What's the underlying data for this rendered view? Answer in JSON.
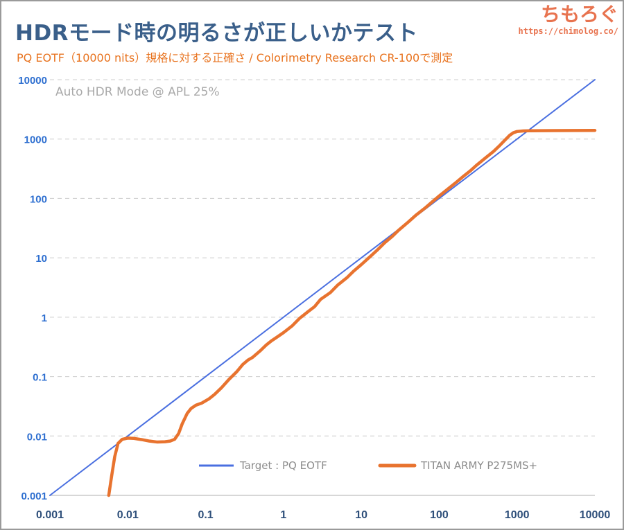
{
  "header": {
    "title": "HDRモード時の明るさが正しいかテスト",
    "subtitle": "PQ EOTF（10000 nits）規格に対する正確さ / Colorimetry Research CR-100で測定"
  },
  "logo": {
    "name": "ちもろぐ",
    "url": "https://chimolog.co/"
  },
  "colors": {
    "target": "#4a6fe0",
    "measured": "#e8732f",
    "title": "#3a5f8a",
    "subtitle": "#e8731f",
    "y_tick": "#2e6fd0",
    "x_tick": "#2e4f7a",
    "grid": "#cccccc"
  },
  "chart_data": {
    "type": "line",
    "xscale": "log",
    "yscale": "log",
    "xlim": [
      0.001,
      10000
    ],
    "ylim": [
      0.001,
      10000
    ],
    "x_ticks": [
      "0.001",
      "0.01",
      "0.1",
      "1",
      "10",
      "100",
      "1000",
      "10000"
    ],
    "y_ticks": [
      "0.001",
      "0.01",
      "0.1",
      "1",
      "10",
      "100",
      "1000",
      "10000"
    ],
    "grid": "horizontal dashed",
    "annotation": "Auto HDR Mode @ APL 25%",
    "legend_position": "bottom-right",
    "series": [
      {
        "name": "Target : PQ EOTF",
        "x": [
          0.001,
          10000
        ],
        "y": [
          0.001,
          10000
        ]
      },
      {
        "name": "TITAN ARMY P275MS+",
        "x": [
          0.0057,
          0.0062,
          0.0068,
          0.0075,
          0.0085,
          0.01,
          0.012,
          0.015,
          0.019,
          0.024,
          0.03,
          0.035,
          0.04,
          0.045,
          0.05,
          0.058,
          0.065,
          0.075,
          0.09,
          0.11,
          0.13,
          0.16,
          0.2,
          0.25,
          0.3,
          0.35,
          0.4,
          0.5,
          0.6,
          0.7,
          0.8,
          1.0,
          1.3,
          1.6,
          2,
          2.5,
          3,
          4,
          5,
          6.5,
          8,
          10,
          13,
          16,
          20,
          25,
          30,
          40,
          50,
          65,
          80,
          100,
          130,
          160,
          200,
          250,
          300,
          400,
          500,
          600,
          700,
          800,
          900,
          1000,
          1200,
          1500,
          2000,
          3000,
          5000,
          10000
        ],
        "y": [
          0.001,
          0.0021,
          0.0045,
          0.0075,
          0.0088,
          0.0092,
          0.0091,
          0.0087,
          0.0082,
          0.0079,
          0.008,
          0.0082,
          0.0088,
          0.011,
          0.016,
          0.024,
          0.029,
          0.033,
          0.036,
          0.042,
          0.05,
          0.065,
          0.09,
          0.12,
          0.16,
          0.19,
          0.21,
          0.27,
          0.34,
          0.4,
          0.45,
          0.55,
          0.72,
          0.95,
          1.2,
          1.5,
          2.0,
          2.6,
          3.5,
          4.6,
          6.0,
          7.7,
          10.5,
          13.5,
          18,
          23,
          29,
          40,
          52,
          68,
          86,
          110,
          145,
          180,
          230,
          290,
          360,
          490,
          620,
          780,
          960,
          1150,
          1280,
          1340,
          1370,
          1380,
          1385,
          1390,
          1395,
          1400
        ]
      }
    ]
  }
}
